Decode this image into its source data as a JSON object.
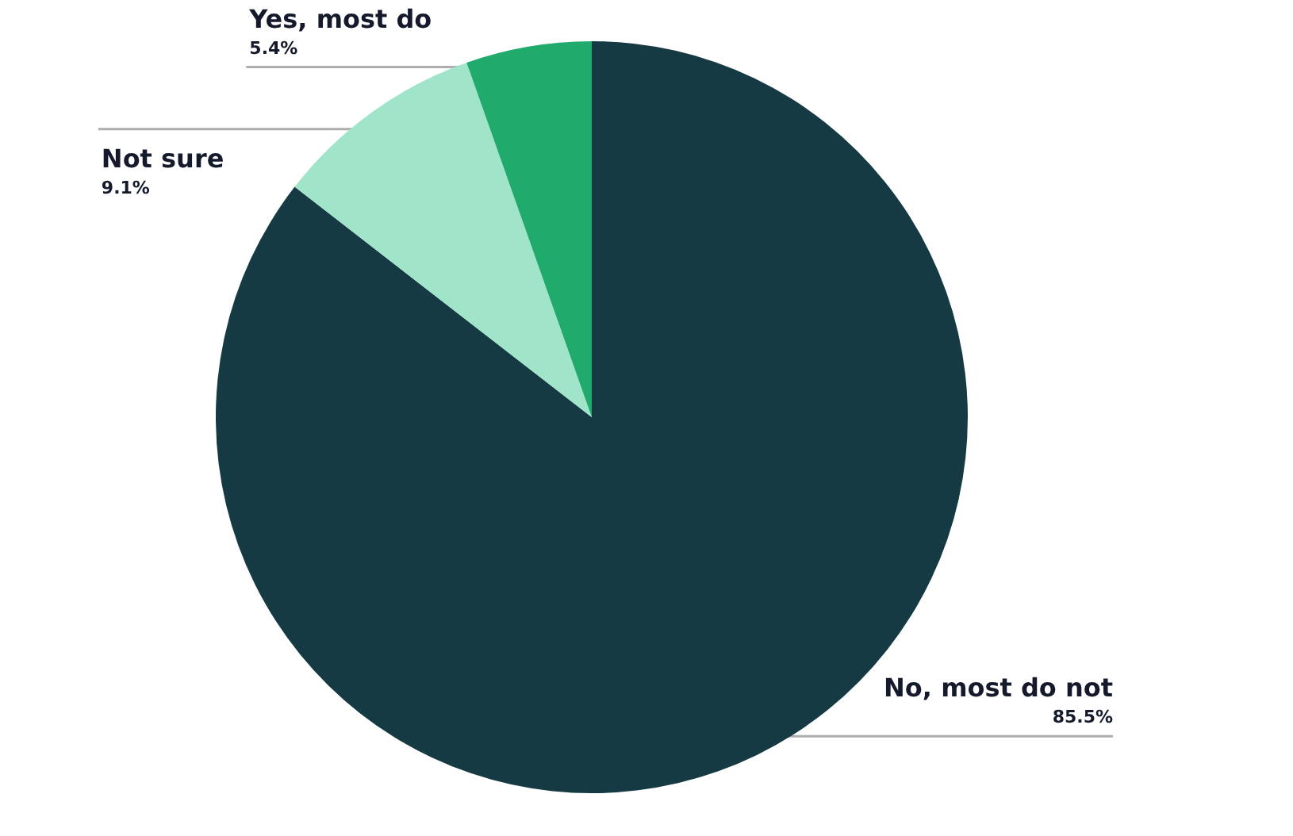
{
  "chart_data": {
    "type": "pie",
    "categories": [
      "No, most do not",
      "Not sure",
      "Yes, most do"
    ],
    "values": [
      85.5,
      9.1,
      5.4
    ],
    "colors": [
      "#153a43",
      "#a0e4c9",
      "#20aa6b"
    ],
    "value_labels": [
      "85.5%",
      "9.1%",
      "5.4%"
    ],
    "legend": false
  }
}
